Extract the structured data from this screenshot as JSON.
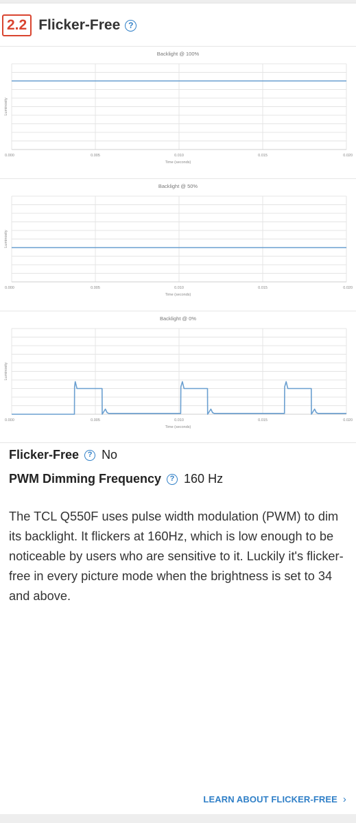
{
  "section": {
    "number": "2.2",
    "title": "Flicker-Free"
  },
  "chart_data": [
    {
      "type": "line",
      "title": "Backlight @ 100%",
      "xlabel": "Time (seconds)",
      "ylabel": "Luminosity",
      "x_ticks": [
        "0.000",
        "0.005",
        "0.010",
        "0.015",
        "0.020"
      ],
      "xlim": [
        0,
        0.02
      ],
      "ylim": [
        0,
        1
      ],
      "grid": true,
      "series": [
        {
          "x": [
            0,
            0.02
          ],
          "y": [
            0.8,
            0.8
          ]
        }
      ]
    },
    {
      "type": "line",
      "title": "Backlight @ 50%",
      "xlabel": "Time (seconds)",
      "ylabel": "Luminosity",
      "x_ticks": [
        "0.000",
        "0.005",
        "0.010",
        "0.015",
        "0.020"
      ],
      "xlim": [
        0,
        0.02
      ],
      "ylim": [
        0,
        1
      ],
      "grid": true,
      "series": [
        {
          "x": [
            0,
            0.02
          ],
          "y": [
            0.4,
            0.4
          ]
        }
      ]
    },
    {
      "type": "line",
      "title": "Backlight @ 0%",
      "xlabel": "Time (seconds)",
      "ylabel": "Luminosity",
      "x_ticks": [
        "0.000",
        "0.005",
        "0.010",
        "0.015",
        "0.020"
      ],
      "xlim": [
        0,
        0.02
      ],
      "ylim": [
        0,
        1
      ],
      "grid": true,
      "series": [
        {
          "x": [
            0,
            0.00375,
            0.00376,
            0.0038,
            0.0039,
            0.0054,
            0.00541,
            0.0056,
            0.0057,
            0.0058,
            0.0101,
            0.01011,
            0.0102,
            0.0103,
            0.0117,
            0.01171,
            0.0119,
            0.012,
            0.0121,
            0.0163,
            0.01631,
            0.0164,
            0.0165,
            0.0179,
            0.01791,
            0.0181,
            0.0182,
            0.0183,
            0.02
          ],
          "y": [
            0.0,
            0.0,
            0.32,
            0.38,
            0.3,
            0.3,
            0.0,
            0.06,
            0.02,
            0.01,
            0.01,
            0.32,
            0.38,
            0.3,
            0.3,
            0.0,
            0.06,
            0.02,
            0.01,
            0.01,
            0.32,
            0.38,
            0.3,
            0.3,
            0.0,
            0.06,
            0.02,
            0.01,
            0.01
          ]
        }
      ]
    }
  ],
  "specs": {
    "flicker_free_label": "Flicker-Free",
    "flicker_free_value": "No",
    "pwm_label": "PWM Dimming Frequency",
    "pwm_value": "160 Hz"
  },
  "description": "The TCL Q550F uses pulse width modulation (PWM) to dim its backlight. It flickers at 160Hz, which is low enough to be noticeable by users who are sensitive to it. Luckily it's flicker-free in every picture mode when the brightness is set to 34 and above.",
  "learn_link": "LEARN ABOUT FLICKER-FREE",
  "colors": {
    "accent": "#2f7fc7",
    "badge": "#d9442f",
    "series": "#6a9fd0"
  },
  "icons": {
    "help": "question-circle-icon",
    "chevron": "chevron-right-icon"
  }
}
